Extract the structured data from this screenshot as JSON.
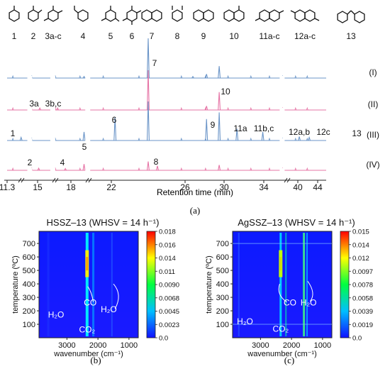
{
  "panel_labels": [
    "(a)",
    "(b)",
    "(c)"
  ],
  "top": {
    "compound_labels": [
      "1",
      "2",
      "3a-c",
      "4",
      "5",
      "6",
      "7",
      "8",
      "9",
      "10",
      "11a-c",
      "12a-c",
      "13"
    ],
    "trace_labels": [
      "(I)",
      "(II)",
      "(III)",
      "(IV)"
    ],
    "peak_labels": [
      "7",
      "3a",
      "3b,c",
      "10",
      "1",
      "6",
      "9",
      "11a",
      "11b,c",
      "12a,b",
      "12c",
      "13",
      "2",
      "4",
      "5",
      "8"
    ],
    "x_ticks": [
      "11.3",
      "15",
      "18",
      "22",
      "26",
      "30",
      "34",
      "40",
      "44"
    ],
    "xlabel": "Retention time (min)"
  },
  "chart_data": [
    {
      "type": "line",
      "title": "",
      "xlabel": "Retention time (min)",
      "ylabel": "",
      "x_ticks": [
        11.3,
        15,
        18,
        22,
        26,
        30,
        34,
        40,
        44
      ],
      "series": [
        {
          "name": "(I)",
          "peaks": [
            {
              "x": 24.0,
              "h": 1.0
            },
            {
              "x": 29.5,
              "h": 0.3
            },
            {
              "x": 28.2,
              "h": 0.1
            },
            {
              "x": 26.8,
              "h": 0.04
            },
            {
              "x": 19.3,
              "h": 0.04
            }
          ]
        },
        {
          "name": "(II)",
          "peaks": [
            {
              "x": 24.0,
              "h": 1.0
            },
            {
              "x": 29.5,
              "h": 0.45
            },
            {
              "x": 28.2,
              "h": 0.1
            },
            {
              "x": 15.2,
              "h": 0.05
            },
            {
              "x": 16.8,
              "h": 0.05
            }
          ]
        },
        {
          "name": "(III)",
          "peaks": [
            {
              "x": 24.0,
              "h": 1.0
            },
            {
              "x": 22.2,
              "h": 0.6
            },
            {
              "x": 28.2,
              "h": 0.55
            },
            {
              "x": 29.5,
              "h": 0.72
            },
            {
              "x": 31.3,
              "h": 0.3
            },
            {
              "x": 33.9,
              "h": 0.22
            },
            {
              "x": 19.3,
              "h": 0.22
            },
            {
              "x": 13.0,
              "h": 0.08
            },
            {
              "x": 40.3,
              "h": 0.1
            },
            {
              "x": 42.3,
              "h": 0.08
            }
          ]
        },
        {
          "name": "(IV)",
          "peaks": [
            {
              "x": 24.0,
              "h": 0.5
            },
            {
              "x": 19.3,
              "h": 0.35
            },
            {
              "x": 24.5,
              "h": 0.25
            },
            {
              "x": 29.5,
              "h": 0.3
            },
            {
              "x": 15.1,
              "h": 0.12
            },
            {
              "x": 17.5,
              "h": 0.1
            }
          ]
        }
      ]
    },
    {
      "type": "heatmap",
      "title": "HSSZ–13 (WHSV = 14 h⁻¹)",
      "xlabel": "wavenumber (cm⁻¹)",
      "ylabel": "temperature (ºC)",
      "x_ticks": [
        3000,
        2000,
        1000
      ],
      "y_ticks": [
        100,
        200,
        300,
        400,
        500,
        600,
        700
      ],
      "colorbar_ticks": [
        "0.018",
        "0.016",
        "0.014",
        "0.011",
        "0.0090",
        "0.0068",
        "0.0045",
        "0.0023",
        "0.0"
      ],
      "annotations": [
        "CO",
        "H₂O",
        "H₂O",
        "CO₂"
      ]
    },
    {
      "type": "heatmap",
      "title": "AgSSZ–13 (WHSV = 14 h⁻¹)",
      "xlabel": "wavenumber (cm⁻¹)",
      "ylabel": "temperature (ºC)",
      "x_ticks": [
        3000,
        2000,
        1000
      ],
      "y_ticks": [
        100,
        200,
        300,
        400,
        500,
        600,
        700
      ],
      "colorbar_ticks": [
        "0.015",
        "0.014",
        "0.012",
        "0.0097",
        "0.0078",
        "0.0058",
        "0.0039",
        "0.0019",
        "0.0"
      ],
      "annotations": [
        "CO",
        "H₂O",
        "H₂O",
        "CO₂"
      ]
    }
  ]
}
